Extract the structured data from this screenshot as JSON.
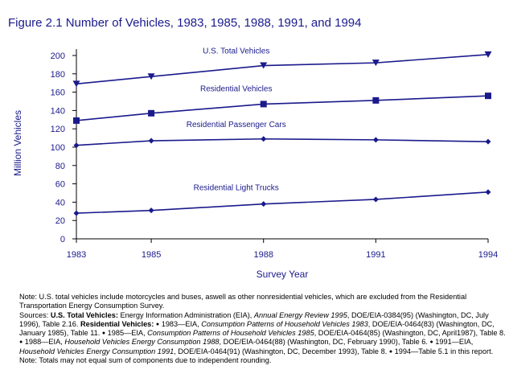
{
  "title": "Figure 2.1  Number of Vehicles, 1983, 1985, 1988, 1991, and 1994",
  "chart_data": {
    "type": "line",
    "title": "Figure 2.1  Number of Vehicles, 1983, 1985, 1988, 1991, and 1994",
    "xlabel": "Survey Year",
    "ylabel": "Million Vehicles",
    "x": [
      1983,
      1985,
      1988,
      1991,
      1994
    ],
    "x_tick_labels": [
      "1983",
      "1985",
      "1988",
      "1991",
      "1994"
    ],
    "xlim": [
      1983,
      1994
    ],
    "ylim": [
      0,
      200
    ],
    "y_ticks": [
      0,
      20,
      40,
      60,
      80,
      100,
      120,
      140,
      160,
      180,
      200
    ],
    "grid": false,
    "series": [
      {
        "name": "U.S. Total Vehicles",
        "values": [
          169,
          177,
          189,
          192,
          201
        ],
        "marker": "triangle-down",
        "color": "#1a1a8c"
      },
      {
        "name": "Residential Vehicles",
        "values": [
          129,
          137,
          147,
          151,
          156
        ],
        "marker": "square",
        "color": "#1a1a8c"
      },
      {
        "name": "Residential Passenger Cars",
        "values": [
          102,
          107,
          109,
          108,
          106
        ],
        "marker": "diamond",
        "color": "#1a1a8c"
      },
      {
        "name": "Residential Light Trucks",
        "values": [
          28,
          31,
          38,
          43,
          51
        ],
        "marker": "diamond",
        "color": "#1a1a8c"
      }
    ],
    "annotations": [
      {
        "text": "U.S. Total Vehicles",
        "x": 1988,
        "y": 202
      },
      {
        "text": "Residential Vehicles",
        "x": 1988,
        "y": 161
      },
      {
        "text": "Residential Passenger Cars",
        "x": 1988,
        "y": 122
      },
      {
        "text": "Residential Light Trucks",
        "x": 1988,
        "y": 53
      }
    ]
  },
  "notes": {
    "note1": "Note: U.S. total vehicles include motorcycles and buses, aswell as other nonresidential vehicles, which are excluded from the Residential Transportation Energy Consumption Survey.",
    "sources_lead": "Sources: ",
    "us_total_label": "U.S. Total Vehicles:",
    "us_total_text": " Energy Information Administration (EIA), ",
    "us_total_pub": "Annual Energy Review 1995",
    "us_total_rest": ", DOE/EIA-0384(95) (Washington, DC, July 1996), Table 2.16. ",
    "res_label": "Residential Vehicles:",
    "bullet": "●",
    "r1983_a": " 1983—EIA, ",
    "r1983_pub": "Consumption Patterns of Household Vehicles 1983",
    "r1983_rest": ", DOE/EIA-0464(83) (Washington, DC, January 1985), Table 11. ",
    "r1985_a": " 1985—EIA, ",
    "r1985_pub": "Consumption Patterns of Household Vehicles 1985",
    "r1985_rest": ", DOE/EIA-0464(85) (Washington, DC, April1987), Table 8. ",
    "r1988_a": " 1988—EIA, ",
    "r1988_pub": "Household Vehicles Energy Consumption 1988",
    "r1988_rest": ", DOE/EIA-0464(88) (Washington, DC, February 1990), Table 6. ",
    "r1991_a": " 1991—EIA, ",
    "r1991_pub": "Household Vehicles Energy Consumption 1991",
    "r1991_rest": ", DOE/EIA-0464(91) (Washington, DC, December 1993), Table 8. ",
    "r1994": " 1994—Table 5.1 in this report.",
    "note2": "Note: Totals may not equal sum of components due to independent rounding."
  }
}
